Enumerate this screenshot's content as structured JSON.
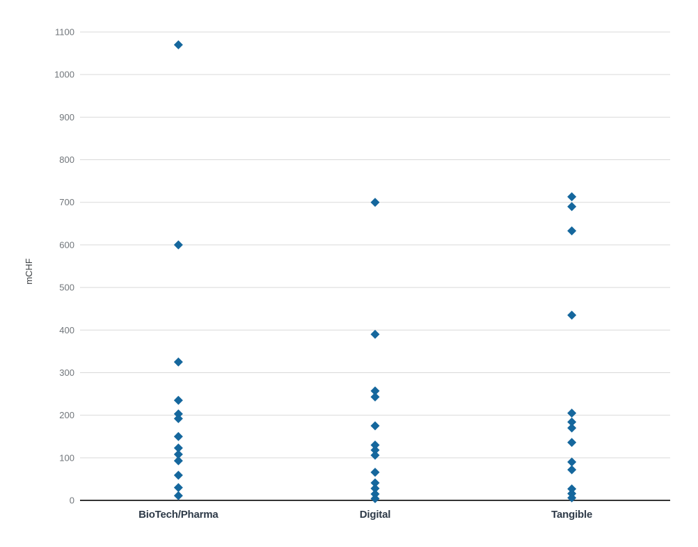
{
  "chart": {
    "marker_color": "#15679d",
    "gridline_color": "#d9d9d9",
    "axis_line_color": "#333333",
    "tick_label_color": "#70757a",
    "category_label_color": "#2e3a48",
    "y_axis_title_color": "#3c4043"
  },
  "chart_data": {
    "type": "scatter",
    "title": "",
    "xlabel": "",
    "ylabel": "mCHF",
    "categories": [
      "BioTech/Pharma",
      "Digital",
      "Tangible"
    ],
    "series": [
      {
        "name": "BioTech/Pharma",
        "values": [
          1070,
          600,
          325,
          235,
          203,
          192,
          150,
          123,
          108,
          93,
          59,
          30,
          11
        ]
      },
      {
        "name": "Digital",
        "values": [
          700,
          390,
          257,
          243,
          175,
          130,
          118,
          106,
          66,
          41,
          28,
          15,
          4
        ]
      },
      {
        "name": "Tangible",
        "values": [
          713,
          690,
          633,
          435,
          205,
          184,
          170,
          136,
          90,
          72,
          27,
          16,
          6
        ]
      }
    ],
    "ylim": [
      0,
      1100
    ],
    "yticks": [
      0,
      100,
      200,
      300,
      400,
      500,
      600,
      700,
      800,
      900,
      1000,
      1100
    ],
    "grid": true,
    "legend": "none",
    "marker": "diamond"
  }
}
